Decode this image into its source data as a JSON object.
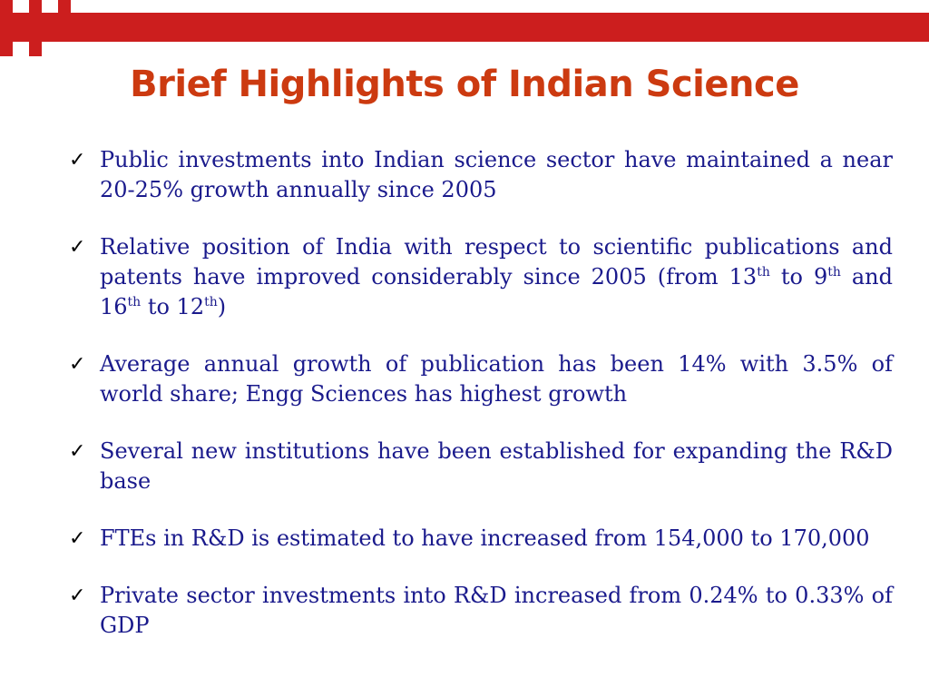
{
  "slide": {
    "title": "Brief Highlights of Indian Science",
    "accent_color": "#cc1e1e",
    "title_color": "#cc3a10",
    "text_color": "#1a1a8c",
    "bullet_icon": "check-icon",
    "bullets": [
      {
        "text": "Public investments into Indian science sector have maintained a near 20-25% growth annually since 2005"
      },
      {
        "parts": {
          "t1": "Relative position of India with respect to scientific publications and patents have improved considerably since 2005 (from 13",
          "s1": "th",
          "t2": " to 9",
          "s2": "th",
          "t3": " and 16",
          "s3": "th",
          "t4": " to 12",
          "s4": "th",
          "t5": ")"
        }
      },
      {
        "text": "Average annual growth of publication has been 14% with 3.5% of world share; Engg Sciences has highest growth"
      },
      {
        "text": "Several new institutions have been established for expanding the R&D base"
      },
      {
        "text": "FTEs in R&D is estimated to have increased from 154,000 to 170,000"
      },
      {
        "text": "Private sector investments into R&D increased from 0.24% to 0.33% of GDP"
      }
    ]
  }
}
